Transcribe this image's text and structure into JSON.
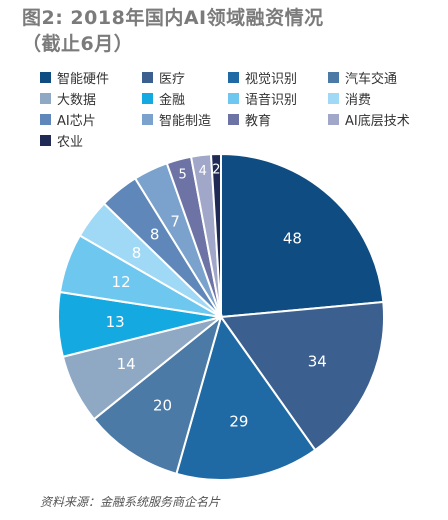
{
  "chart_data": {
    "type": "pie",
    "title": "图2: 2018年国内AI领域融资情况",
    "subtitle": "（截止6月）",
    "categories": [
      "智能硬件",
      "医疗",
      "视觉识别",
      "汽车交通",
      "大数据",
      "金融",
      "语音识别",
      "消费",
      "AI芯片",
      "智能制造",
      "教育",
      "AI底层技术",
      "农业"
    ],
    "values": [
      48,
      34,
      29,
      20,
      14,
      13,
      12,
      8,
      8,
      7,
      5,
      4,
      2
    ],
    "colors": [
      "#0f4c81",
      "#3b5f8f",
      "#1f6aa5",
      "#4b7aa6",
      "#8fa9c4",
      "#14a9e0",
      "#6dc7ef",
      "#9fd9f5",
      "#5f87b9",
      "#7aa2cc",
      "#6e73a6",
      "#a0a7c8",
      "#1f2a55"
    ],
    "label_colors": [
      "#ffffff",
      "#ffffff",
      "#ffffff",
      "#ffffff",
      "#ffffff",
      "#ffffff",
      "#ffffff",
      "#ffffff",
      "#ffffff",
      "#ffffff",
      "#ffffff",
      "#ffffff",
      "#ffffff"
    ],
    "legend_position": "top",
    "start_angle_deg": 0,
    "direction": "clockwise"
  },
  "source": "资料来源：金融系统服务商企名片"
}
